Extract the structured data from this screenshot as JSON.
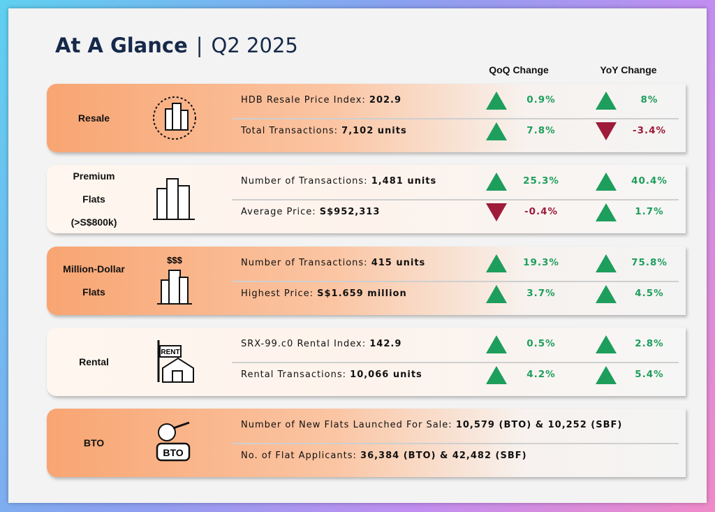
{
  "header": {
    "title": "At A Glance",
    "separator": "|",
    "period": "Q2 2025"
  },
  "columns": {
    "qoq": "QoQ Change",
    "yoy": "YoY Change"
  },
  "sections": [
    {
      "label_lines": [
        "Resale"
      ],
      "rows": [
        {
          "label": "HDB Resale Price Index:",
          "value": "202.9",
          "qoq": "0.9%",
          "yoy": "8%"
        },
        {
          "label": "Total Transactions:",
          "value": "7,102 units",
          "qoq": "7.8%",
          "yoy": "-3.4%"
        }
      ]
    },
    {
      "label_lines": [
        "Premium",
        "Flats",
        "(>S$800k)"
      ],
      "rows": [
        {
          "label": "Number of Transactions:",
          "value": "1,481 units",
          "qoq": "25.3%",
          "yoy": "40.4%"
        },
        {
          "label": "Average Price:",
          "value": "S$952,313",
          "qoq": "-0.4%",
          "yoy": "1.7%"
        }
      ]
    },
    {
      "label_lines": [
        "Million-Dollar",
        "Flats"
      ],
      "icon_text": "$$$",
      "rows": [
        {
          "label": "Number of Transactions:",
          "value": "415 units",
          "qoq": "19.3%",
          "yoy": "75.8%"
        },
        {
          "label": "Highest Price:",
          "value": "S$1.659 million",
          "qoq": "3.7%",
          "yoy": "4.5%"
        }
      ]
    },
    {
      "label_lines": [
        "Rental"
      ],
      "icon_text": "RENT",
      "rows": [
        {
          "label": "SRX-99.c0 Rental Index:",
          "value": "142.9",
          "qoq": "0.5%",
          "yoy": "2.8%"
        },
        {
          "label": "Rental Transactions:",
          "value": "10,066 units",
          "qoq": "4.2%",
          "yoy": "5.4%"
        }
      ]
    },
    {
      "label_lines": [
        "BTO"
      ],
      "icon_text": "BTO",
      "rows": [
        {
          "label": "Number of New Flats Launched For Sale:",
          "value": "10,579 (BTO) & 10,252 (SBF)"
        },
        {
          "label": "No. of Flat Applicants:",
          "value": "36,384 (BTO) & 42,482 (SBF)"
        }
      ]
    }
  ]
}
